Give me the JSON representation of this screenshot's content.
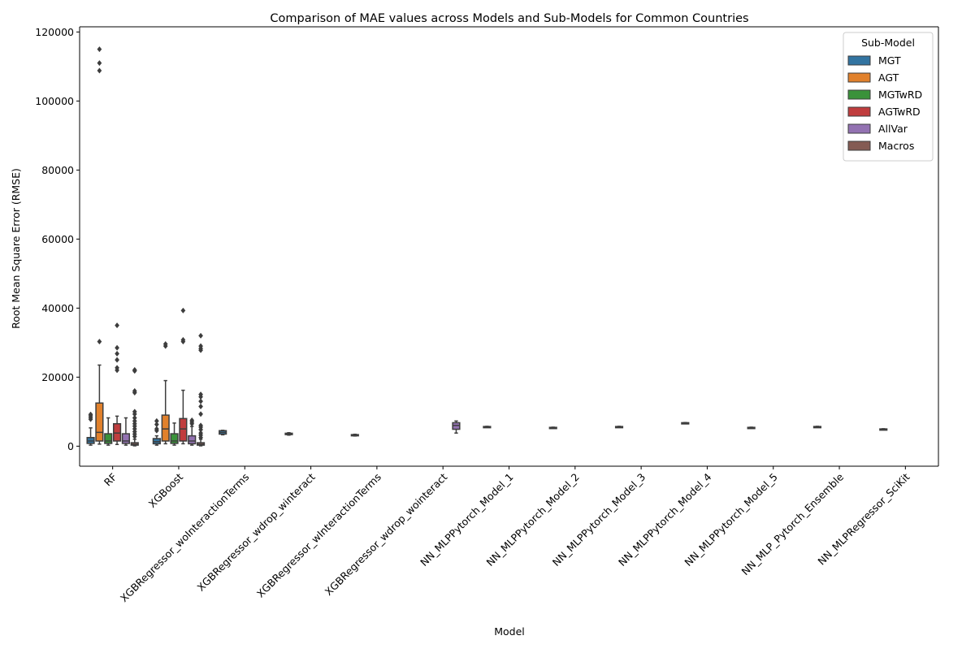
{
  "chart_data": {
    "type": "box",
    "title": "Comparison of MAE values across Models and Sub-Models for Common Countries",
    "xlabel": "Model",
    "ylabel": "Root Mean Square Error (RMSE)",
    "ylim": [
      -5800,
      121500
    ],
    "yticks": [
      0,
      20000,
      40000,
      60000,
      80000,
      100000,
      120000
    ],
    "grid": false,
    "legend": {
      "title": "Sub-Model",
      "placement": "top-right",
      "entries": [
        {
          "name": "MGT",
          "color": "#3274a1"
        },
        {
          "name": "AGT",
          "color": "#e1812c"
        },
        {
          "name": "MGTwRD",
          "color": "#3a923a"
        },
        {
          "name": "AGTwRD",
          "color": "#c03d3e"
        },
        {
          "name": "AllVar",
          "color": "#9372b2"
        },
        {
          "name": "Macros",
          "color": "#845b53"
        }
      ]
    },
    "categories": [
      "RF",
      "XGBoost",
      "XGBRegressor_woInteractionTerms",
      "XGBRegressor_wdrop_winteract",
      "XGBRegressor_wInteractionTerms",
      "XGBRegressor_wdrop_wointeract",
      "NN_MLPPytorch_Model_1",
      "NN_MLPPytorch_Model_2",
      "NN_MLPPytorch_Model_3",
      "NN_MLPPytorch_Model_4",
      "NN_MLPPytorch_Model_5",
      "NN_MLP_Pytorch_Ensemble",
      "NN_MLPRegressor_SciKit"
    ],
    "boxes": [
      {
        "category": "RF",
        "sub_model": "MGT",
        "whisker_low": 300,
        "q1": 800,
        "median": 1500,
        "q3": 2500,
        "whisker_high": 5300,
        "outliers": [
          7800,
          8300,
          8800,
          9200
        ]
      },
      {
        "category": "RF",
        "sub_model": "AGT",
        "whisker_low": 600,
        "q1": 1500,
        "median": 4000,
        "q3": 12500,
        "whisker_high": 23500,
        "outliers": [
          30300,
          108800,
          111000,
          115000
        ]
      },
      {
        "category": "RF",
        "sub_model": "MGTwRD",
        "whisker_low": 300,
        "q1": 800,
        "median": 1500,
        "q3": 3600,
        "whisker_high": 8200,
        "outliers": []
      },
      {
        "category": "RF",
        "sub_model": "AGTwRD",
        "whisker_low": 500,
        "q1": 1500,
        "median": 3800,
        "q3": 6500,
        "whisker_high": 8700,
        "outliers": [
          22000,
          22700,
          25000,
          26800,
          28500,
          35000
        ]
      },
      {
        "category": "RF",
        "sub_model": "AllVar",
        "whisker_low": 300,
        "q1": 800,
        "median": 1500,
        "q3": 3600,
        "whisker_high": 8200,
        "outliers": []
      },
      {
        "category": "RF",
        "sub_model": "Macros",
        "whisker_low": 100,
        "q1": 300,
        "median": 500,
        "q3": 1000,
        "whisker_high": 2000,
        "outliers": [
          2800,
          3500,
          4200,
          5000,
          5800,
          6500,
          7300,
          8200,
          9300,
          10000,
          15500,
          16000,
          21800,
          22100
        ]
      },
      {
        "category": "XGBoost",
        "sub_model": "MGT",
        "whisker_low": 300,
        "q1": 700,
        "median": 1300,
        "q3": 2200,
        "whisker_high": 3000,
        "outliers": [
          4500,
          5000,
          6300,
          7300
        ]
      },
      {
        "category": "XGBoost",
        "sub_model": "AGT",
        "whisker_low": 700,
        "q1": 1500,
        "median": 5000,
        "q3": 9000,
        "whisker_high": 19000,
        "outliers": [
          29000,
          29600
        ]
      },
      {
        "category": "XGBoost",
        "sub_model": "MGTwRD",
        "whisker_low": 300,
        "q1": 800,
        "median": 1500,
        "q3": 3600,
        "whisker_high": 6700,
        "outliers": []
      },
      {
        "category": "XGBoost",
        "sub_model": "AGTwRD",
        "whisker_low": 700,
        "q1": 1500,
        "median": 5000,
        "q3": 8000,
        "whisker_high": 16200,
        "outliers": [
          30300,
          30800,
          39300
        ]
      },
      {
        "category": "XGBoost",
        "sub_model": "AllVar",
        "whisker_low": 300,
        "q1": 700,
        "median": 1500,
        "q3": 3000,
        "whisker_high": 5700,
        "outliers": [
          6500,
          7000,
          7500
        ]
      },
      {
        "category": "XGBoost",
        "sub_model": "Macros",
        "whisker_low": 100,
        "q1": 300,
        "median": 500,
        "q3": 1000,
        "whisker_high": 2000,
        "outliers": [
          2500,
          3200,
          3800,
          4800,
          5500,
          6000,
          9300,
          11500,
          13000,
          14300,
          15000,
          27800,
          28300,
          29000,
          32000
        ]
      },
      {
        "category": "XGBRegressor_woInteractionTerms",
        "sub_model": "MGT",
        "whisker_low": 3300,
        "q1": 3500,
        "median": 4000,
        "q3": 4500,
        "whisker_high": 4600,
        "outliers": []
      },
      {
        "category": "XGBRegressor_wdrop_winteract",
        "sub_model": "MGT",
        "whisker_low": 3200,
        "q1": 3350,
        "median": 3500,
        "q3": 3750,
        "whisker_high": 3900,
        "outliers": []
      },
      {
        "category": "XGBRegressor_wInteractionTerms",
        "sub_model": "MGT",
        "whisker_low": 2950,
        "q1": 3050,
        "median": 3200,
        "q3": 3350,
        "whisker_high": 3450,
        "outliers": []
      },
      {
        "category": "XGBRegressor_wdrop_wointeract",
        "sub_model": "AllVar",
        "whisker_low": 3800,
        "q1": 4900,
        "median": 6000,
        "q3": 6800,
        "whisker_high": 7300,
        "outliers": []
      },
      {
        "category": "NN_MLPPytorch_Model_1",
        "sub_model": "MGT",
        "whisker_low": 5550,
        "q1": 5600,
        "median": 5650,
        "q3": 5700,
        "whisker_high": 5750,
        "outliers": []
      },
      {
        "category": "NN_MLPPytorch_Model_2",
        "sub_model": "MGT",
        "whisker_low": 5300,
        "q1": 5350,
        "median": 5400,
        "q3": 5450,
        "whisker_high": 5500,
        "outliers": []
      },
      {
        "category": "NN_MLPPytorch_Model_3",
        "sub_model": "MGT",
        "whisker_low": 5550,
        "q1": 5600,
        "median": 5650,
        "q3": 5700,
        "whisker_high": 5750,
        "outliers": []
      },
      {
        "category": "NN_MLPPytorch_Model_4",
        "sub_model": "MGT",
        "whisker_low": 6650,
        "q1": 6700,
        "median": 6750,
        "q3": 6800,
        "whisker_high": 6850,
        "outliers": []
      },
      {
        "category": "NN_MLPPytorch_Model_5",
        "sub_model": "MGT",
        "whisker_low": 5300,
        "q1": 5350,
        "median": 5400,
        "q3": 5450,
        "whisker_high": 5500,
        "outliers": []
      },
      {
        "category": "NN_MLP_Pytorch_Ensemble",
        "sub_model": "MGT",
        "whisker_low": 5550,
        "q1": 5600,
        "median": 5650,
        "q3": 5700,
        "whisker_high": 5750,
        "outliers": []
      },
      {
        "category": "NN_MLPRegressor_SciKit",
        "sub_model": "MGT",
        "whisker_low": 4850,
        "q1": 4900,
        "median": 4950,
        "q3": 5000,
        "whisker_high": 5050,
        "outliers": []
      }
    ]
  }
}
